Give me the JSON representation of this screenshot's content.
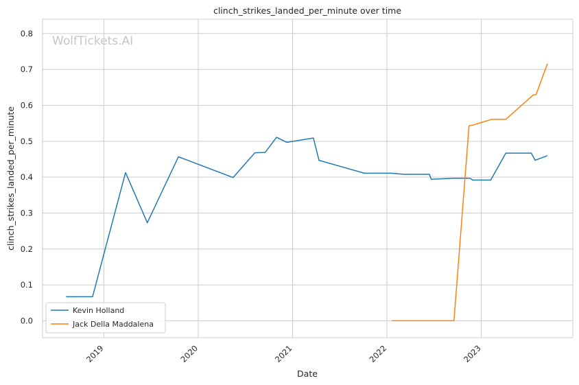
{
  "chart_data": {
    "type": "line",
    "title": "clinch_strikes_landed_per_minute over time",
    "xlabel": "Date",
    "ylabel": "clinch_strikes_landed_per_minute",
    "watermark": "WolfTickets.AI",
    "xlim": [
      2018.35,
      2023.97
    ],
    "ylim": [
      -0.047,
      0.84
    ],
    "x_ticks": [
      2019,
      2020,
      2021,
      2022,
      2023
    ],
    "x_tick_labels": [
      "2019",
      "2020",
      "2021",
      "2022",
      "2023"
    ],
    "y_ticks": [
      0.0,
      0.1,
      0.2,
      0.3,
      0.4,
      0.5,
      0.6,
      0.7,
      0.8
    ],
    "y_tick_labels": [
      "0.0",
      "0.1",
      "0.2",
      "0.3",
      "0.4",
      "0.5",
      "0.6",
      "0.7",
      "0.8"
    ],
    "grid": true,
    "legend_position": "lower-left",
    "series": [
      {
        "name": "Kevin Holland",
        "color": "#1f77b4",
        "x": [
          2018.6,
          2018.88,
          2019.23,
          2019.46,
          2019.79,
          2020.37,
          2020.6,
          2020.71,
          2020.83,
          2020.94,
          2021.22,
          2021.28,
          2021.76,
          2022.05,
          2022.18,
          2022.45,
          2022.47,
          2022.7,
          2022.88,
          2022.91,
          2023.1,
          2023.26,
          2023.53,
          2023.57,
          2023.7
        ],
        "y": [
          0.067,
          0.067,
          0.413,
          0.273,
          0.457,
          0.399,
          0.468,
          0.469,
          0.511,
          0.497,
          0.509,
          0.447,
          0.411,
          0.411,
          0.408,
          0.408,
          0.394,
          0.397,
          0.397,
          0.392,
          0.392,
          0.467,
          0.467,
          0.447,
          0.46
        ]
      },
      {
        "name": "Jack Della Maddalena",
        "color": "#ff7f0e",
        "x": [
          2022.05,
          2022.71,
          2022.87,
          2022.91,
          2023.11,
          2023.26,
          2023.55,
          2023.58,
          2023.7
        ],
        "y": [
          0.0,
          0.0,
          0.543,
          0.545,
          0.561,
          0.561,
          0.629,
          0.63,
          0.716
        ]
      }
    ]
  }
}
